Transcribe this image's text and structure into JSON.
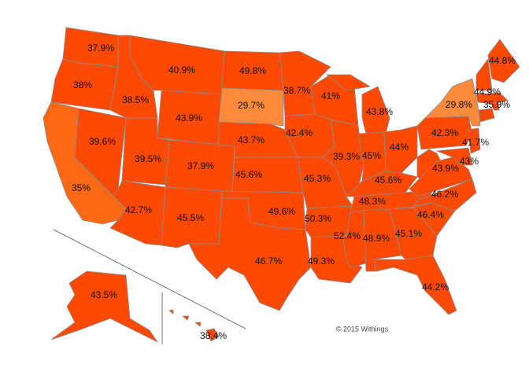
{
  "chart_data": {
    "type": "choropleth",
    "values": [
      37.9,
      38,
      35,
      39.6,
      38.5,
      40.9,
      43.9,
      39.5,
      37.9,
      42.7,
      45.5,
      49.8,
      29.7,
      43.7,
      45.6,
      49.6,
      46.7,
      38.7,
      42.4,
      45.3,
      50.3,
      49.3,
      41,
      39.3,
      43.8,
      45,
      44,
      45.6,
      48.3,
      52.4,
      48.9,
      45.1,
      44.2,
      46.4,
      46.2,
      43.9,
      43,
      42.3,
      29.8,
      41.7,
      35.9,
      44.9,
      44.8,
      43.5,
      38.4
    ],
    "value_labels": [
      "37.9%",
      "38%",
      "35%",
      "39.6%",
      "38.5%",
      "40.9%",
      "43.9%",
      "39.5%",
      "37.9%",
      "42.7%",
      "45.5%",
      "49.8%",
      "29.7%",
      "43.7%",
      "45.6%",
      "49.6%",
      "46.7%",
      "38.7%",
      "42.4%",
      "45.3%",
      "50.3%",
      "49.3%",
      "41%",
      "39.3%",
      "43.8%",
      "45%",
      "44%",
      "45.6%",
      "48.3%",
      "52.4%",
      "48.9%",
      "45.1%",
      "44.2%",
      "46.4%",
      "46.2%",
      "43.9%",
      "43%",
      "42.3%",
      "29.8%",
      "41.7%",
      "35.9%",
      "44.9%",
      "44.8%",
      "43.5%",
      "38.4%"
    ],
    "colors": [
      "#fc4a05",
      "#fc4a05",
      "#fd6914",
      "#fc4a05",
      "#fc4a05",
      "#fc4a05",
      "#fc4a05",
      "#fc4a05",
      "#fc4a05",
      "#fc4a05",
      "#fc4a05",
      "#fc4a05",
      "#fb8a3a",
      "#fc4a05",
      "#fc4a05",
      "#fc4a05",
      "#fc4a05",
      "#fc4a05",
      "#fc4a05",
      "#fc4a05",
      "#fc4a05",
      "#fc4a05",
      "#fc4a05",
      "#fc4a05",
      "#fc4a05",
      "#fc4a05",
      "#fc4a05",
      "#fc4a05",
      "#fc4a05",
      "#fc4a05",
      "#fc4a05",
      "#fc4a05",
      "#fc4a05",
      "#fc4a05",
      "#fc4a05",
      "#fc4a05",
      "#fc4a05",
      "#fc4a05",
      "#fb8a3a",
      "#fc4a05",
      "#fc4a05",
      "#fc4a05",
      "#fc4a05",
      "#fc4a05",
      "#fc4a05"
    ]
  },
  "credit": "© 2015 Withings"
}
